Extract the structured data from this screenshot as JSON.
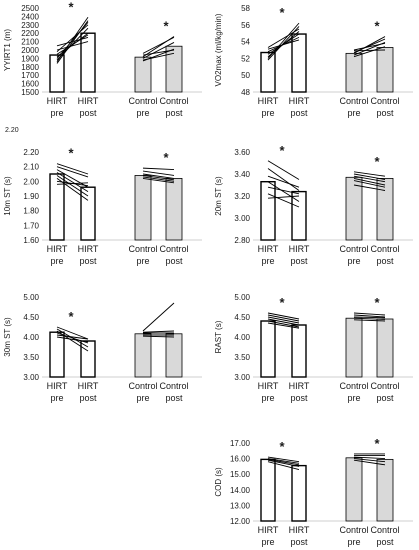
{
  "colors": {
    "bar_hirt": "#ffffff",
    "bar_control": "#d9d9d9",
    "bar_edge": "#000000",
    "line": "#000000"
  },
  "chart_data": [
    {
      "id": "yyirt1",
      "type": "bar",
      "ylabel": "YYIRT1 (m)",
      "ylim": [
        1500,
        2500
      ],
      "yticks": [
        "2500",
        "2400",
        "2300",
        "2200",
        "2100",
        "2000",
        "1900",
        "1800",
        "1700",
        "1600",
        "1500"
      ],
      "categories": [
        [
          "HIRT",
          "pre"
        ],
        [
          "HIRT",
          "post"
        ],
        [
          "Control",
          "pre"
        ],
        [
          "Control",
          "post"
        ]
      ],
      "values": [
        1940,
        2200,
        1915,
        2045
      ],
      "significance": [
        "*",
        "*"
      ],
      "hirt_lines": [
        [
          1840,
          2350
        ],
        [
          1860,
          2390
        ],
        [
          1880,
          2260
        ],
        [
          1900,
          2330
        ],
        [
          1920,
          2200
        ],
        [
          1950,
          2180
        ],
        [
          1980,
          2300
        ],
        [
          2000,
          2100
        ],
        [
          2050,
          2150
        ]
      ],
      "control_lines": [
        [
          1870,
          2010
        ],
        [
          1880,
          1960
        ],
        [
          1900,
          2090
        ],
        [
          1920,
          2160
        ],
        [
          1940,
          2000
        ],
        [
          1960,
          2150
        ]
      ]
    },
    {
      "id": "vo2max",
      "type": "bar",
      "ylabel": "VO2max (ml/kg/min)",
      "ylim": [
        48,
        58
      ],
      "yticks": [
        "58",
        "56",
        "54",
        "52",
        "50",
        "48"
      ],
      "categories": [
        [
          "HIRT",
          "pre"
        ],
        [
          "HIRT",
          "post"
        ],
        [
          "Control",
          "pre"
        ],
        [
          "Control",
          "post"
        ]
      ],
      "values": [
        52.7,
        54.9,
        52.6,
        53.3
      ],
      "significance": [
        "*",
        "*"
      ],
      "hirt_lines": [
        [
          51.8,
          55.8
        ],
        [
          52.0,
          56.2
        ],
        [
          52.2,
          55.2
        ],
        [
          52.5,
          54.9
        ],
        [
          52.8,
          54.5
        ],
        [
          53.1,
          54.2
        ],
        [
          53.3,
          55.5
        ]
      ],
      "control_lines": [
        [
          52.2,
          53.4
        ],
        [
          52.4,
          53.9
        ],
        [
          52.7,
          54.3
        ],
        [
          53.0,
          53.8
        ],
        [
          52.9,
          53.0
        ],
        [
          52.6,
          54.6
        ]
      ]
    },
    {
      "id": "10m",
      "type": "bar",
      "ylabel": "10m ST (s)",
      "ylim": [
        1.6,
        2.2
      ],
      "yticks": [
        "2.20",
        "2.10",
        "2.00",
        "1.90",
        "1.80",
        "1.70",
        "1.60"
      ],
      "top_label": "2.20",
      "categories": [
        [
          "HIRT",
          "pre"
        ],
        [
          "HIRT",
          "post"
        ],
        [
          "Control",
          "pre"
        ],
        [
          "Control",
          "post"
        ]
      ],
      "values": [
        2.05,
        1.96,
        2.04,
        2.02
      ],
      "significance": [
        "*",
        "*"
      ],
      "hirt_lines": [
        [
          2.12,
          2.05
        ],
        [
          2.1,
          2.03
        ],
        [
          2.08,
          1.96
        ],
        [
          2.06,
          1.93
        ],
        [
          2.04,
          1.9
        ],
        [
          2.02,
          1.87
        ],
        [
          2.0,
          1.97
        ],
        [
          1.98,
          1.99
        ]
      ],
      "control_lines": [
        [
          2.09,
          2.08
        ],
        [
          2.07,
          2.04
        ],
        [
          2.05,
          2.02
        ],
        [
          2.04,
          2.01
        ],
        [
          2.03,
          2.0
        ],
        [
          2.02,
          1.99
        ]
      ]
    },
    {
      "id": "20m",
      "type": "bar",
      "ylabel": "20m ST (s)",
      "ylim": [
        2.8,
        3.6
      ],
      "yticks": [
        "3.60",
        "3.40",
        "3.20",
        "3.00",
        "2.80"
      ],
      "categories": [
        [
          "HIRT",
          "pre"
        ],
        [
          "HIRT",
          "post"
        ],
        [
          "Control",
          "pre"
        ],
        [
          "Control",
          "post"
        ]
      ],
      "values": [
        3.33,
        3.24,
        3.37,
        3.36
      ],
      "significance": [
        "*",
        "*"
      ],
      "hirt_lines": [
        [
          3.52,
          3.35
        ],
        [
          3.45,
          3.25
        ],
        [
          3.38,
          3.28
        ],
        [
          3.33,
          3.15
        ],
        [
          3.28,
          3.22
        ],
        [
          3.22,
          3.1
        ],
        [
          3.18,
          3.2
        ]
      ],
      "control_lines": [
        [
          3.42,
          3.38
        ],
        [
          3.4,
          3.35
        ],
        [
          3.38,
          3.33
        ],
        [
          3.36,
          3.3
        ],
        [
          3.34,
          3.28
        ],
        [
          3.3,
          3.25
        ]
      ]
    },
    {
      "id": "30m",
      "type": "bar",
      "ylabel": "30m ST (s)",
      "ylim": [
        3.0,
        5.0
      ],
      "yticks": [
        "5.00",
        "4.50",
        "4.00",
        "3.50",
        "3.00"
      ],
      "categories": [
        [
          "HIRT",
          "pre"
        ],
        [
          "HIRT",
          "post"
        ],
        [
          "Control",
          "pre"
        ],
        [
          "Control",
          "post"
        ]
      ],
      "values": [
        4.12,
        3.9,
        4.08,
        4.08
      ],
      "significance": [
        "*"
      ],
      "hirt_lines": [
        [
          4.25,
          3.95
        ],
        [
          4.2,
          3.75
        ],
        [
          4.15,
          3.65
        ],
        [
          4.1,
          3.85
        ],
        [
          4.05,
          3.95
        ],
        [
          4.0,
          3.88
        ]
      ],
      "control_lines": [
        [
          4.15,
          4.85
        ],
        [
          4.12,
          4.15
        ],
        [
          4.1,
          4.1
        ],
        [
          4.05,
          4.05
        ],
        [
          4.02,
          4.0
        ]
      ]
    },
    {
      "id": "rast",
      "type": "bar",
      "ylabel": "RAST (s)",
      "ylim": [
        3.0,
        5.0
      ],
      "yticks": [
        "5.00",
        "4.50",
        "4.00",
        "3.50",
        "3.00"
      ],
      "categories": [
        [
          "HIRT",
          "pre"
        ],
        [
          "HIRT",
          "post"
        ],
        [
          "Control",
          "pre"
        ],
        [
          "Control",
          "post"
        ]
      ],
      "values": [
        4.4,
        4.3,
        4.47,
        4.45
      ],
      "significance": [
        "*",
        "*"
      ],
      "hirt_lines": [
        [
          4.6,
          4.45
        ],
        [
          4.55,
          4.4
        ],
        [
          4.5,
          4.35
        ],
        [
          4.45,
          4.3
        ],
        [
          4.4,
          4.25
        ],
        [
          4.35,
          4.22
        ]
      ],
      "control_lines": [
        [
          4.6,
          4.55
        ],
        [
          4.55,
          4.5
        ],
        [
          4.5,
          4.48
        ],
        [
          4.47,
          4.44
        ],
        [
          4.43,
          4.4
        ]
      ]
    },
    {
      "id": "cod",
      "type": "bar",
      "ylabel": "COD (s)",
      "ylim": [
        12.0,
        17.0
      ],
      "yticks": [
        "17.00",
        "16.00",
        "15.00",
        "14.00",
        "13.00",
        "12.00"
      ],
      "categories": [
        [
          "HIRT",
          "pre"
        ],
        [
          "HIRT",
          "post"
        ],
        [
          "Control",
          "pre"
        ],
        [
          "Control",
          "post"
        ]
      ],
      "values": [
        15.95,
        15.55,
        16.05,
        15.95
      ],
      "significance": [
        "*",
        "*"
      ],
      "hirt_lines": [
        [
          16.1,
          15.8
        ],
        [
          16.0,
          15.7
        ],
        [
          15.95,
          15.6
        ],
        [
          15.9,
          15.5
        ],
        [
          15.8,
          15.3
        ]
      ],
      "control_lines": [
        [
          16.3,
          16.3
        ],
        [
          16.2,
          16.2
        ],
        [
          16.1,
          16.0
        ],
        [
          16.0,
          15.8
        ],
        [
          15.9,
          15.6
        ]
      ]
    }
  ]
}
